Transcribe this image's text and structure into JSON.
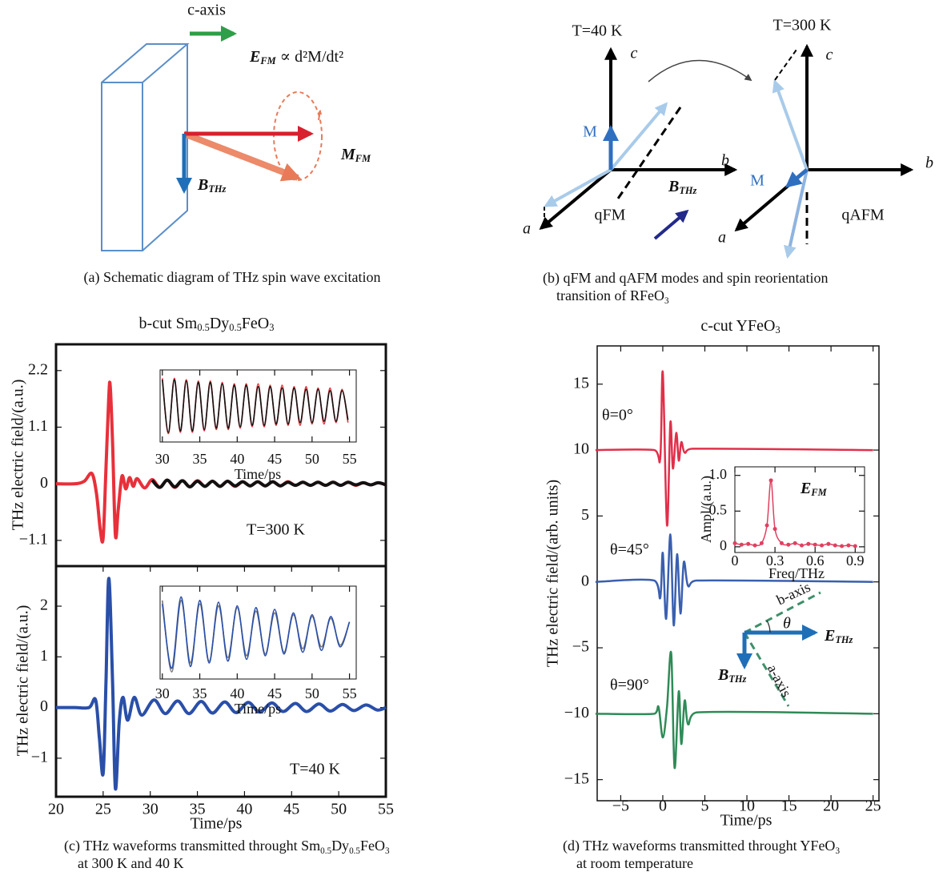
{
  "figure": {
    "panel_a": {
      "c_axis": "c-axis",
      "equation": [
        "E",
        "FM",
        " ∝ d²M/dt²"
      ],
      "magnetization": [
        "M",
        "FM"
      ],
      "field": [
        "B",
        "THz"
      ],
      "caption": "(a) Schematic diagram of THz spin wave excitation"
    },
    "panel_b": {
      "left_temperature": "T=40 K",
      "right_temperature": "T=300 K",
      "axis_labels": [
        "c",
        "b",
        "a",
        "c",
        "b",
        "a"
      ],
      "moment_labels": [
        "M",
        "M"
      ],
      "field": [
        "B",
        "THz"
      ],
      "mode_labels": [
        "qFM",
        "qAFM"
      ],
      "caption": [
        "(b) qFM and qAFM modes and spin reorientation",
        [
          "transition of RFeO",
          "3"
        ]
      ]
    },
    "panel_c": {
      "caption": [
        [
          "(c) THz waveforms transmitted throught Sm",
          "0.5",
          "Dy",
          "0.5",
          "FeO",
          "3"
        ],
        "at 300 K and 40 K"
      ]
    },
    "panel_d": {
      "axis_labels": [
        "b-axis",
        "a-axis"
      ],
      "angle": "θ",
      "e_field": [
        "E",
        "THz"
      ],
      "b_field": [
        "B",
        "THz"
      ],
      "caption": [
        [
          "(d) THz waveforms transmitted throught YFeO",
          "3"
        ],
        "at room temperature"
      ]
    }
  },
  "chart_data": [
    {
      "type": "line",
      "title": [
        "b-cut Sm",
        "0.5",
        "Dy",
        "0.5",
        "FeO",
        "3"
      ],
      "y_label": "THz electric field/(a.u.)",
      "annotations": [
        "T=300 K"
      ],
      "xlim": [
        20,
        55
      ],
      "ylim": [
        -1.6,
        2.71
      ],
      "yticks": [
        {
          "value": -1.1,
          "label": "−1.1"
        },
        0,
        1.1,
        2.2
      ],
      "series": [
        {
          "color": "#e8303a",
          "x": [
            20,
            22,
            23,
            23.8,
            24.3,
            24.7,
            25,
            25.3,
            25.6,
            25.75,
            26,
            26.3,
            26.6,
            27,
            27.4,
            27.8,
            28.2,
            28.6,
            29.4,
            30.2,
            31.0,
            31.8,
            32.6,
            33.4,
            34.2,
            35.0,
            35.8,
            36.6,
            37.4,
            38.2,
            39.0,
            39.8,
            40.6,
            41.4,
            42.2,
            43.0,
            43.8,
            44.6,
            45.4,
            46.2,
            47.0,
            47.8,
            48.6,
            49.4,
            50.2,
            51.0,
            51.8,
            52.6,
            53.4,
            54.2,
            55
          ],
          "values": [
            0,
            0,
            0.05,
            0.2,
            -0.2,
            -0.9,
            -1.05,
            0.3,
            1.7,
            1.9,
            0.8,
            -1.0,
            -0.5,
            0.15,
            -0.1,
            0.12,
            -0.05,
            0.1,
            -0.08,
            0.08,
            -0.07,
            0.07,
            -0.07,
            0.06,
            -0.06,
            0.06,
            -0.05,
            0.05,
            -0.05,
            0.05,
            -0.05,
            0.04,
            -0.04,
            0.04,
            -0.04,
            0.04,
            -0.04,
            0.04,
            -0.03,
            0.03,
            -0.03,
            0.03,
            -0.03,
            0.03,
            -0.03,
            0.03,
            -0.03,
            0.02,
            -0.02,
            0.02,
            -0.02
          ]
        },
        {
          "color": "#111111",
          "x": [
            30.2,
            31.0,
            31.8,
            32.6,
            33.4,
            34.2,
            35.0,
            35.8,
            36.6,
            37.4,
            38.2,
            39.0,
            39.8,
            40.6,
            41.4,
            42.2,
            43.0,
            43.8,
            44.6,
            45.4,
            46.2,
            47.0,
            47.8,
            48.6,
            49.4,
            50.2,
            51.0,
            51.8,
            52.6,
            53.4,
            54.2,
            55
          ],
          "values": [
            0.07,
            -0.07,
            0.07,
            -0.06,
            0.06,
            -0.06,
            0.05,
            -0.05,
            0.05,
            -0.05,
            0.05,
            -0.04,
            0.04,
            -0.04,
            0.04,
            -0.04,
            0.04,
            -0.04,
            0.03,
            -0.03,
            0.03,
            -0.03,
            0.03,
            -0.03,
            0.03,
            -0.03,
            0.03,
            -0.02,
            0.02,
            -0.02,
            0.02,
            -0.02
          ]
        }
      ]
    },
    {
      "type": "line",
      "x_label": "Time/ps",
      "xlim": [
        29.7,
        55.9
      ],
      "xticks": [
        30,
        35,
        40,
        45,
        50,
        55
      ],
      "ylim": [
        -1.3,
        1.3
      ],
      "series": [
        {
          "color": "#e8303a",
          "x": [
            30,
            30.8,
            31.6,
            32.4,
            33.2,
            34,
            34.8,
            35.6,
            36.4,
            37.2,
            38,
            38.8,
            39.6,
            40.4,
            41.2,
            42,
            42.8,
            43.6,
            44.4,
            45.2,
            46,
            46.8,
            47.6,
            48.4,
            49.2,
            50,
            50.8,
            51.6,
            52.4,
            53.2,
            54,
            54.8
          ],
          "values": [
            1.0,
            -1.0,
            1.0,
            -0.95,
            0.95,
            -0.95,
            0.9,
            -0.9,
            0.9,
            -0.85,
            0.85,
            -0.85,
            0.8,
            -0.8,
            0.8,
            -0.75,
            0.8,
            -0.75,
            0.75,
            -0.7,
            0.75,
            -0.7,
            0.7,
            -0.7,
            0.7,
            -0.65,
            0.65,
            -0.65,
            0.65,
            -0.6,
            0.6,
            -0.6
          ]
        },
        {
          "color": "#111111",
          "x": [
            30,
            30.8,
            31.6,
            32.4,
            33.2,
            34,
            34.8,
            35.6,
            36.4,
            37.2,
            38,
            38.8,
            39.6,
            40.4,
            41.2,
            42,
            42.8,
            43.6,
            44.4,
            45.2,
            46,
            46.8,
            47.6,
            48.4,
            49.2,
            50,
            50.8,
            51.6,
            52.4,
            53.2,
            54,
            54.8
          ],
          "values": [
            0.95,
            -0.95,
            0.95,
            -0.9,
            0.9,
            -0.9,
            0.85,
            -0.85,
            0.85,
            -0.8,
            0.8,
            -0.8,
            0.75,
            -0.75,
            0.75,
            -0.7,
            0.7,
            -0.7,
            0.7,
            -0.65,
            0.65,
            -0.65,
            0.65,
            -0.6,
            0.6,
            -0.6,
            0.6,
            -0.55,
            0.55,
            -0.55,
            0.55,
            -0.5
          ]
        }
      ]
    },
    {
      "type": "line",
      "x_label": "Time/ps",
      "y_label": "THz electric field/(a.u.)",
      "annotations": [
        "T=40 K"
      ],
      "xlim": [
        20,
        55
      ],
      "xticks": [
        20,
        25,
        30,
        35,
        40,
        45,
        50,
        55
      ],
      "ylim": [
        -1.76,
        2.79
      ],
      "yticks": [
        {
          "value": -1,
          "label": "−1"
        },
        0,
        1,
        2
      ],
      "series": [
        {
          "color": "#2a4fa8",
          "x": [
            20,
            22,
            23.5,
            24.2,
            24.6,
            25,
            25.3,
            25.6,
            26,
            26.3,
            26.7,
            27.1,
            27.6,
            28.3,
            29.1,
            30.4,
            31.6,
            32.9,
            34.1,
            35.4,
            36.6,
            37.9,
            39.1,
            40.4,
            41.6,
            42.9,
            44.1,
            45.4,
            46.6,
            47.9,
            49.1,
            50.4,
            51.6,
            52.9,
            54.1,
            55
          ],
          "values": [
            0,
            0,
            0,
            0.15,
            -0.6,
            -1.3,
            0.5,
            2.55,
            0.5,
            -1.6,
            -0.3,
            0.2,
            -0.25,
            0.2,
            -0.15,
            0.15,
            -0.12,
            0.13,
            -0.12,
            0.12,
            -0.11,
            0.11,
            -0.1,
            0.1,
            -0.09,
            0.09,
            -0.08,
            0.08,
            -0.08,
            0.07,
            -0.07,
            0.06,
            -0.06,
            0.05,
            -0.05,
            0.0
          ]
        }
      ]
    },
    {
      "type": "line",
      "x_label": "Time/ps",
      "xlim": [
        29.7,
        55.9
      ],
      "xticks": [
        30,
        35,
        40,
        45,
        50,
        55
      ],
      "ylim": [
        -1.3,
        1.3
      ],
      "series": [
        {
          "color": "#777777",
          "x": [
            30,
            31.25,
            32.5,
            33.75,
            35,
            36.25,
            37.5,
            38.75,
            40,
            41.25,
            42.5,
            43.75,
            45,
            46.25,
            47.5,
            48.75,
            50,
            51.25,
            52.5,
            53.75,
            55
          ],
          "values": [
            0.9,
            -1.1,
            0.9,
            -0.85,
            0.8,
            -0.8,
            0.75,
            -0.7,
            0.7,
            -0.65,
            0.6,
            -0.6,
            0.55,
            -0.55,
            0.5,
            -0.45,
            0.45,
            -0.4,
            0.4,
            -0.35,
            0.3
          ]
        },
        {
          "color": "#2a4fa8",
          "x": [
            30,
            31.25,
            32.5,
            33.75,
            35,
            36.25,
            37.5,
            38.75,
            40,
            41.25,
            42.5,
            43.75,
            45,
            46.25,
            47.5,
            48.75,
            50,
            51.25,
            52.5,
            53.75,
            55
          ],
          "values": [
            0.8,
            -1.0,
            1.0,
            -0.95,
            0.9,
            -0.85,
            0.85,
            -0.8,
            0.75,
            -0.75,
            0.7,
            -0.65,
            0.65,
            -0.6,
            0.55,
            -0.55,
            0.5,
            -0.5,
            0.45,
            -0.4,
            0.3
          ]
        }
      ]
    },
    {
      "type": "line",
      "title": [
        "c-cut YFeO",
        "3"
      ],
      "x_label": "Time/ps",
      "y_label": "THz electric field/(arb. units)",
      "annotations": [
        "θ=0°",
        "θ=45°",
        "θ=90°"
      ],
      "xlim": [
        -7.8,
        25.7
      ],
      "xticks": [
        {
          "value": -5,
          "label": "−5"
        },
        0,
        5,
        10,
        15,
        20,
        25
      ],
      "ylim": [
        -16.6,
        17.9
      ],
      "yticks": [
        {
          "value": -15,
          "label": "−15"
        },
        {
          "value": -10,
          "label": "−10"
        },
        {
          "value": -5,
          "label": "−5"
        },
        0,
        5,
        10,
        15
      ],
      "series": [
        {
          "color": "#e0304a",
          "x": [
            -8,
            -1,
            -0.3,
            0,
            0.5,
            0.9,
            1.2,
            1.6,
            1.9,
            2.2,
            2.6,
            3.5,
            25
          ],
          "values": [
            10,
            10,
            9.4,
            15.9,
            4.3,
            12.1,
            8.6,
            11.3,
            9.2,
            10.6,
            9.8,
            10.1,
            10
          ]
        },
        {
          "color": "#3a5fb0",
          "x": [
            -8,
            -1,
            -0.3,
            0,
            0.4,
            0.9,
            1.3,
            1.7,
            2.1,
            2.5,
            3,
            4,
            25
          ],
          "values": [
            0,
            0.1,
            -1.2,
            2.2,
            -2.8,
            3.6,
            -3.3,
            2.1,
            -2.4,
            1.5,
            -0.3,
            0.1,
            0
          ]
        },
        {
          "color": "#2e8b57",
          "x": [
            -8,
            -1,
            -0.5,
            0,
            0.5,
            1.0,
            1.4,
            1.9,
            2.2,
            2.6,
            3.0,
            4,
            25
          ],
          "values": [
            -10,
            -10,
            -9.5,
            -11.8,
            -9.5,
            -5.4,
            -14.1,
            -8.3,
            -12.3,
            -9.0,
            -10.8,
            -9.9,
            -10
          ]
        }
      ]
    },
    {
      "type": "line",
      "x_label": "Freq/THz",
      "y_label": "Ampl/(a.u.)",
      "annotations": [
        [
          "E",
          "FM"
        ]
      ],
      "markers": true,
      "xlim": [
        0,
        0.97
      ],
      "xticks": [
        0,
        0.3,
        0.6,
        0.9
      ],
      "ylim": [
        -0.08,
        1.12
      ],
      "yticks": [
        0,
        0.5,
        {
          "value": 1,
          "label": "1.0"
        }
      ],
      "series": [
        {
          "color": "#e04060",
          "x": [
            0,
            0.05,
            0.1,
            0.15,
            0.2,
            0.24,
            0.27,
            0.3,
            0.35,
            0.4,
            0.45,
            0.5,
            0.55,
            0.6,
            0.65,
            0.7,
            0.75,
            0.8,
            0.85,
            0.9
          ],
          "values": [
            0.05,
            0.03,
            0.04,
            0.02,
            0.05,
            0.3,
            0.93,
            0.25,
            0.05,
            0.03,
            0.05,
            0.02,
            0.04,
            0.03,
            0.02,
            0.04,
            0.02,
            0.01,
            0.02,
            0.01
          ]
        }
      ]
    }
  ]
}
